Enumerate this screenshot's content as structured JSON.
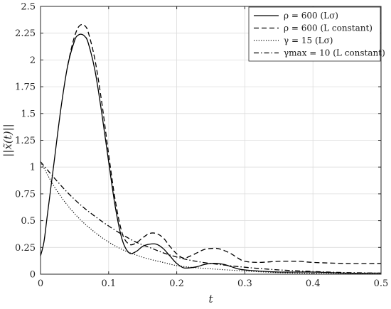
{
  "chart_data": {
    "type": "line",
    "title": "",
    "xlabel": "t",
    "ylabel": "||x̃(t)||",
    "xlim": [
      0,
      0.5
    ],
    "ylim": [
      0,
      2.5
    ],
    "xticks": [
      0,
      0.1,
      0.2,
      0.3,
      0.4,
      0.5
    ],
    "xtick_labels": [
      "0",
      "0.1",
      "0.2",
      "0.3",
      "0.4",
      "0.5"
    ],
    "yticks": [
      0,
      0.25,
      0.5,
      0.75,
      1,
      1.25,
      1.5,
      1.75,
      2,
      2.25,
      2.5
    ],
    "ytick_labels": [
      "0",
      "0.25",
      "0.5",
      "0.75",
      "1",
      "1.25",
      "1.5",
      "1.75",
      "2",
      "2.25",
      "2.5"
    ],
    "grid": true,
    "legend_position": "top-right",
    "series": [
      {
        "name": "ρ = 600 (Lσ)",
        "style": "solid",
        "color": "#000000",
        "x": [
          0,
          0.005,
          0.01,
          0.02,
          0.03,
          0.04,
          0.05,
          0.055,
          0.06,
          0.065,
          0.07,
          0.08,
          0.09,
          0.1,
          0.11,
          0.12,
          0.13,
          0.14,
          0.15,
          0.16,
          0.17,
          0.18,
          0.19,
          0.2,
          0.21,
          0.22,
          0.23,
          0.24,
          0.25,
          0.26,
          0.27,
          0.28,
          0.29,
          0.3,
          0.32,
          0.35,
          0.4,
          0.45,
          0.5
        ],
        "y": [
          0.17,
          0.3,
          0.55,
          1.05,
          1.55,
          1.95,
          2.18,
          2.23,
          2.24,
          2.22,
          2.16,
          1.9,
          1.5,
          1.05,
          0.62,
          0.32,
          0.2,
          0.21,
          0.26,
          0.28,
          0.28,
          0.24,
          0.17,
          0.1,
          0.06,
          0.06,
          0.07,
          0.09,
          0.1,
          0.1,
          0.09,
          0.07,
          0.05,
          0.04,
          0.03,
          0.02,
          0.02,
          0.01,
          0.01
        ]
      },
      {
        "name": "ρ = 600 (L constant)",
        "style": "dashed",
        "color": "#000000",
        "x": [
          0.04,
          0.045,
          0.05,
          0.055,
          0.06,
          0.065,
          0.07,
          0.08,
          0.09,
          0.1,
          0.11,
          0.12,
          0.13,
          0.14,
          0.15,
          0.16,
          0.17,
          0.18,
          0.19,
          0.2,
          0.21,
          0.22,
          0.23,
          0.24,
          0.25,
          0.26,
          0.27,
          0.28,
          0.29,
          0.3,
          0.32,
          0.35,
          0.38,
          0.4,
          0.45,
          0.5
        ],
        "y": [
          1.95,
          2.1,
          2.22,
          2.3,
          2.33,
          2.32,
          2.26,
          2.0,
          1.6,
          1.12,
          0.68,
          0.38,
          0.28,
          0.29,
          0.34,
          0.38,
          0.38,
          0.34,
          0.26,
          0.19,
          0.15,
          0.17,
          0.2,
          0.23,
          0.24,
          0.24,
          0.22,
          0.19,
          0.15,
          0.12,
          0.11,
          0.12,
          0.12,
          0.11,
          0.1,
          0.1
        ]
      },
      {
        "name": "γ = 15 (Lσ)",
        "style": "dotted",
        "color": "#000000",
        "x": [
          0,
          0.02,
          0.04,
          0.06,
          0.08,
          0.1,
          0.12,
          0.14,
          0.16,
          0.18,
          0.2,
          0.22,
          0.25,
          0.3,
          0.35,
          0.4,
          0.45,
          0.5
        ],
        "y": [
          1.05,
          0.82,
          0.64,
          0.5,
          0.39,
          0.3,
          0.23,
          0.18,
          0.14,
          0.11,
          0.08,
          0.065,
          0.05,
          0.03,
          0.015,
          0.008,
          0.004,
          0.002
        ]
      },
      {
        "name": "γmax = 10 (L constant)",
        "style": "dashdot",
        "color": "#000000",
        "x": [
          0,
          0.02,
          0.04,
          0.06,
          0.08,
          0.1,
          0.12,
          0.14,
          0.16,
          0.18,
          0.2,
          0.22,
          0.25,
          0.3,
          0.35,
          0.4,
          0.45,
          0.5
        ],
        "y": [
          1.05,
          0.9,
          0.76,
          0.64,
          0.54,
          0.45,
          0.37,
          0.3,
          0.25,
          0.2,
          0.16,
          0.13,
          0.1,
          0.065,
          0.04,
          0.025,
          0.015,
          0.01
        ]
      }
    ]
  }
}
